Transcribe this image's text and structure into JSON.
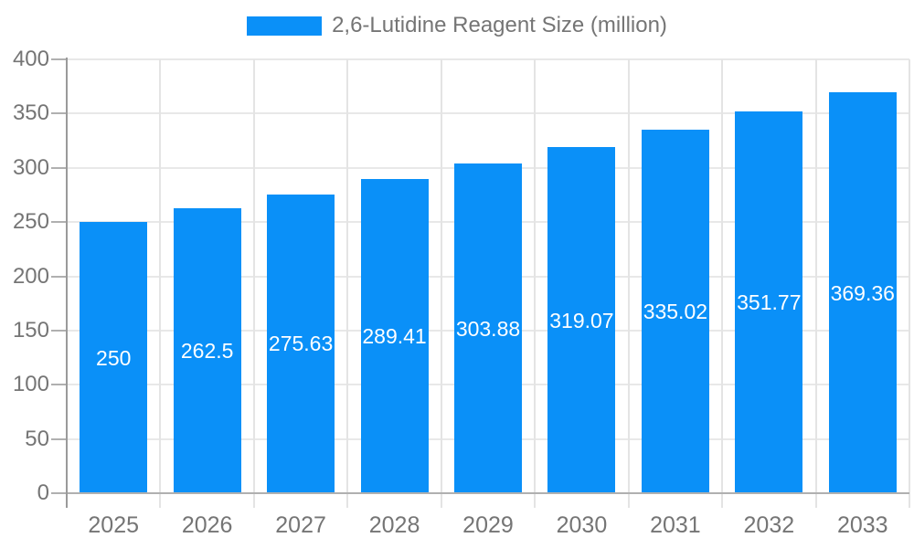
{
  "legend": {
    "label": "2,6-Lutidine Reagent Size (million)"
  },
  "chart_data": {
    "type": "bar",
    "title": "2,6-Lutidine Reagent Size (million)",
    "categories": [
      "2025",
      "2026",
      "2027",
      "2028",
      "2029",
      "2030",
      "2031",
      "2032",
      "2033"
    ],
    "series": [
      {
        "name": "2,6-Lutidine Reagent Size (million)",
        "values": [
          250,
          262.5,
          275.63,
          289.41,
          303.88,
          319.07,
          335.02,
          351.77,
          369.36
        ],
        "value_labels": [
          "250",
          "262.5",
          "275.63",
          "289.41",
          "303.88",
          "319.07",
          "335.02",
          "351.77",
          "369.36"
        ]
      }
    ],
    "xlabel": "",
    "ylabel": "",
    "ylim": [
      0,
      400
    ],
    "ytick_values": [
      0,
      50,
      100,
      150,
      200,
      250,
      300,
      350,
      400
    ],
    "grid": true,
    "value_labels_shown": true,
    "legend_position": "top-center",
    "colors": {
      "bar": "#0a90f8",
      "gridline": "#e8e8e8",
      "vertical_gridline": "#e4e4e4",
      "axis_line": "#9a9a9a",
      "baseline": "#b0b0b0",
      "tick_text": "#757575",
      "value_text": "#ffffff"
    }
  }
}
